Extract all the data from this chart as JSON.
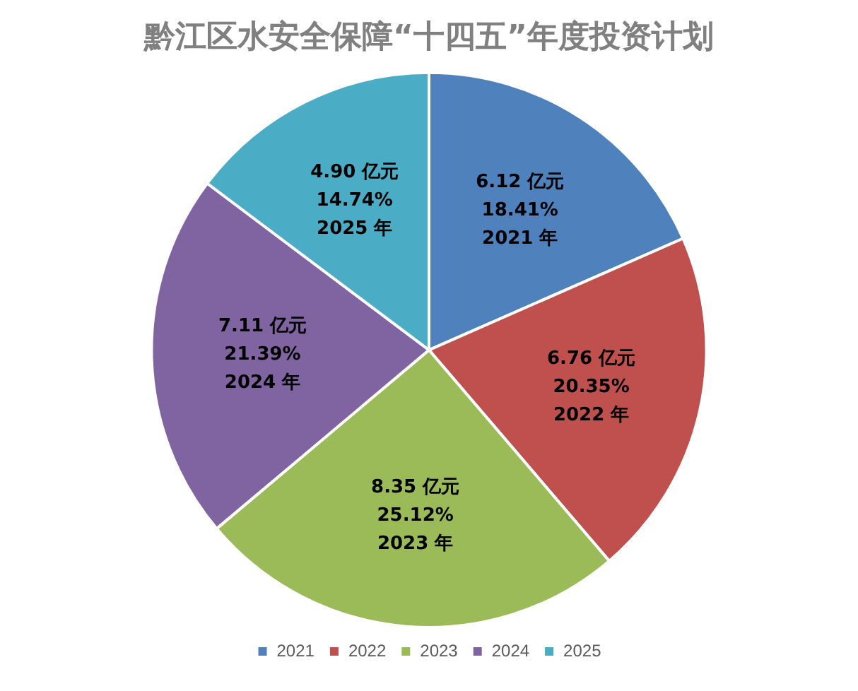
{
  "chart_data": {
    "type": "pie",
    "title": "黔江区水安全保障“十四五”年度投资计划",
    "categories": [
      "2021",
      "2022",
      "2023",
      "2024",
      "2025"
    ],
    "values": [
      6.12,
      6.76,
      8.35,
      7.11,
      4.9
    ],
    "colors": [
      "#4f81bd",
      "#c0504d",
      "#9bbb59",
      "#8064a2",
      "#4bacc6"
    ],
    "value_labels": [
      "6.12 亿元\n18.41%\n2021 年",
      "6.76 亿元\n20.35%\n2022 年",
      "8.35 亿元\n25.12%\n2023 年",
      "7.11 亿元\n21.39%\n2024 年",
      "4.90 亿元\n14.74%\n2025 年"
    ],
    "legend": "bottom"
  }
}
